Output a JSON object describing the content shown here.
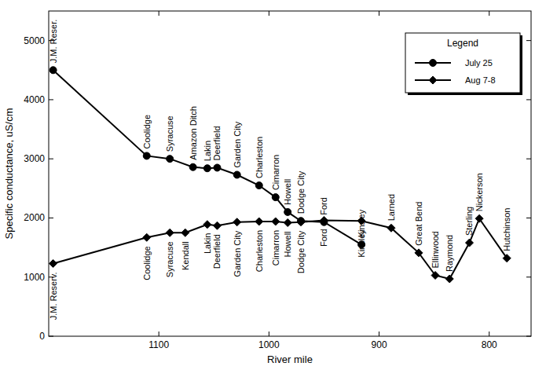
{
  "chart_data": {
    "type": "line",
    "x_label": "River mile",
    "y_label": "Specific conductance, uS/cm",
    "xlim": [
      1200,
      762
    ],
    "xticks": [
      1100,
      1000,
      900,
      800
    ],
    "ylim": [
      0,
      5500
    ],
    "yticks": [
      0,
      1000,
      2000,
      3000,
      4000,
      5000
    ],
    "grid": false,
    "legend": "upper right",
    "legend_title": "Legend",
    "series": [
      {
        "name": "July 25",
        "color": "#000000",
        "marker": "circle",
        "x": [
          1196,
          1111,
          1090,
          1069,
          1056,
          1047,
          1029,
          1009,
          994,
          983,
          971,
          950,
          916
        ],
        "values": [
          4500,
          3050,
          3000,
          2860,
          2840,
          2850,
          2730,
          2550,
          2350,
          2100,
          1950,
          1930,
          1550
        ],
        "point_labels": [
          "J.M. Reser.",
          "Coolidge",
          "Syracuse",
          "Amazon Ditch",
          "Lakin",
          "Deerfield",
          "Garden City",
          "Charleston",
          "Cimarron",
          "Howell",
          "Dodge City",
          "Ford",
          "Kinsley"
        ]
      },
      {
        "name": "Aug 7-8",
        "color": "#000000",
        "marker": "diamond",
        "x": [
          1196,
          1111,
          1090,
          1076,
          1056,
          1047,
          1029,
          1009,
          994,
          983,
          971,
          950,
          916,
          889,
          864,
          849,
          836,
          818,
          809,
          784
        ],
        "values": [
          1230,
          1670,
          1750,
          1750,
          1890,
          1870,
          1930,
          1940,
          1940,
          1920,
          1930,
          1960,
          1950,
          1830,
          1410,
          1030,
          970,
          1580,
          1990,
          1320
        ],
        "point_labels": [
          "J.M. Reserv.",
          "Coolidge",
          "Syracuse",
          "Kendall",
          "Lakin",
          "Deerfield",
          "Garden City",
          "Charleston",
          "Cimarron",
          "Howell",
          "Dodge City",
          "Ford",
          "Kinsley",
          "Larned",
          "Great Bend",
          "Ellinwood",
          "Raymond",
          "Sterling",
          "Nickerson",
          "Hutchinson"
        ]
      }
    ]
  }
}
